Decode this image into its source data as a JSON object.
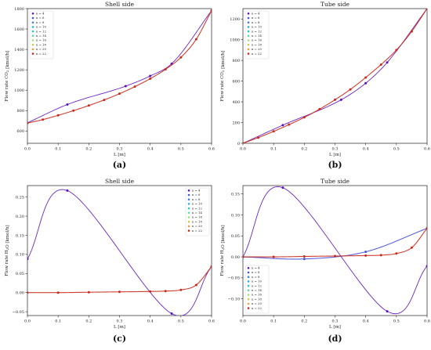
{
  "legend_labels": [
    "n = 4",
    "n = 6",
    "n = 8",
    "n = 10",
    "n = 12",
    "n = 14",
    "n = 16",
    "n = 18",
    "n = 20",
    "n = 22"
  ],
  "legend_colors": [
    "#5b0fbf",
    "#4652d8",
    "#3f7fe3",
    "#29a9df",
    "#28c7c7",
    "#54dda5",
    "#9be36f",
    "#d2c84d",
    "#f19a3b",
    "#c92a1b"
  ],
  "chart_data": [
    {
      "type": "line",
      "panel_label": "(a)",
      "title": "Shell side",
      "xlabel": "L [m]",
      "ylabel": "Flow rate CO$_2$ [kmol/h]",
      "xlim": [
        0.0,
        0.6
      ],
      "ylim": [
        480,
        1800
      ],
      "xticks": [
        0.0,
        0.1,
        0.2,
        0.3,
        0.4,
        0.5,
        0.6
      ],
      "yticks": [
        600,
        800,
        1000,
        1200,
        1400,
        1600,
        1800
      ],
      "legend_position": "top-left",
      "series": [
        {
          "name": "n = 4",
          "x": [
            0.0,
            0.13,
            0.32,
            0.4,
            0.47,
            0.6
          ],
          "y": [
            680,
            860,
            1040,
            1140,
            1260,
            1780
          ]
        },
        {
          "name": "n = 22",
          "x": [
            0.0,
            0.05,
            0.1,
            0.15,
            0.2,
            0.25,
            0.3,
            0.35,
            0.4,
            0.45,
            0.5,
            0.55,
            0.6
          ],
          "y": [
            678,
            712,
            754,
            800,
            850,
            905,
            966,
            1035,
            1113,
            1205,
            1322,
            1500,
            1780
          ]
        }
      ]
    },
    {
      "type": "line",
      "panel_label": "(b)",
      "title": "Tube side",
      "xlabel": "L [m]",
      "ylabel": "Flow rate CO$_2$ [kmol/h]",
      "xlim": [
        0.0,
        0.6
      ],
      "ylim": [
        0,
        1300
      ],
      "xticks": [
        0.0,
        0.1,
        0.2,
        0.3,
        0.4,
        0.5,
        0.6
      ],
      "yticks": [
        0,
        200,
        400,
        600,
        800,
        1000,
        1200
      ],
      "legend_position": "top-left",
      "series": [
        {
          "name": "n = 4",
          "x": [
            0.0,
            0.13,
            0.32,
            0.4,
            0.47,
            0.6
          ],
          "y": [
            0,
            175,
            420,
            580,
            780,
            1300
          ]
        },
        {
          "name": "n = 22",
          "x": [
            0.0,
            0.05,
            0.1,
            0.15,
            0.2,
            0.25,
            0.3,
            0.35,
            0.4,
            0.45,
            0.5,
            0.55,
            0.6
          ],
          "y": [
            0,
            55,
            115,
            180,
            250,
            330,
            420,
            520,
            635,
            760,
            900,
            1080,
            1300
          ]
        }
      ]
    },
    {
      "type": "line",
      "panel_label": "(c)",
      "title": "Shell side",
      "xlabel": "L [m]",
      "ylabel": "Flow rate H$_2$O [kmol/h]",
      "xlim": [
        0.0,
        0.6
      ],
      "ylim": [
        -0.06,
        0.28
      ],
      "xticks": [
        0.0,
        0.1,
        0.2,
        0.3,
        0.4,
        0.5,
        0.6
      ],
      "yticks": [
        -0.05,
        0.0,
        0.05,
        0.1,
        0.15,
        0.2,
        0.25
      ],
      "legend_position": "top-right",
      "series": [
        {
          "name": "n = 4",
          "x": [
            0.0,
            0.13,
            0.47,
            0.6
          ],
          "y": [
            0.088,
            0.267,
            -0.055,
            0.068
          ]
        },
        {
          "name": "n = 22",
          "x": [
            0.0,
            0.1,
            0.2,
            0.3,
            0.4,
            0.45,
            0.5,
            0.55,
            0.6
          ],
          "y": [
            0.0,
            0.0,
            0.001,
            0.002,
            0.003,
            0.004,
            0.007,
            0.02,
            0.068
          ]
        }
      ]
    },
    {
      "type": "line",
      "panel_label": "(d)",
      "title": "Tube side",
      "xlabel": "L [m]",
      "ylabel": "Flow rate H$_2$O [kmol/h]",
      "xlim": [
        0.0,
        0.6
      ],
      "ylim": [
        -0.14,
        0.17
      ],
      "xticks": [
        0.0,
        0.1,
        0.2,
        0.3,
        0.4,
        0.5,
        0.6
      ],
      "yticks": [
        -0.1,
        -0.05,
        0.0,
        0.05,
        0.1,
        0.15
      ],
      "legend_position": "bottom-left",
      "series": [
        {
          "name": "n = 4",
          "x": [
            0.0,
            0.13,
            0.47,
            0.6
          ],
          "y": [
            0.0,
            0.165,
            -0.13,
            -0.022
          ]
        },
        {
          "name": "n = 6",
          "x": [
            0.0,
            0.2,
            0.4,
            0.6
          ],
          "y": [
            0.0,
            -0.005,
            0.012,
            0.068
          ]
        },
        {
          "name": "n = 22",
          "x": [
            0.0,
            0.1,
            0.2,
            0.3,
            0.4,
            0.45,
            0.5,
            0.55,
            0.6
          ],
          "y": [
            0.0,
            0.0,
            0.001,
            0.002,
            0.003,
            0.004,
            0.008,
            0.022,
            0.068
          ]
        }
      ]
    }
  ]
}
